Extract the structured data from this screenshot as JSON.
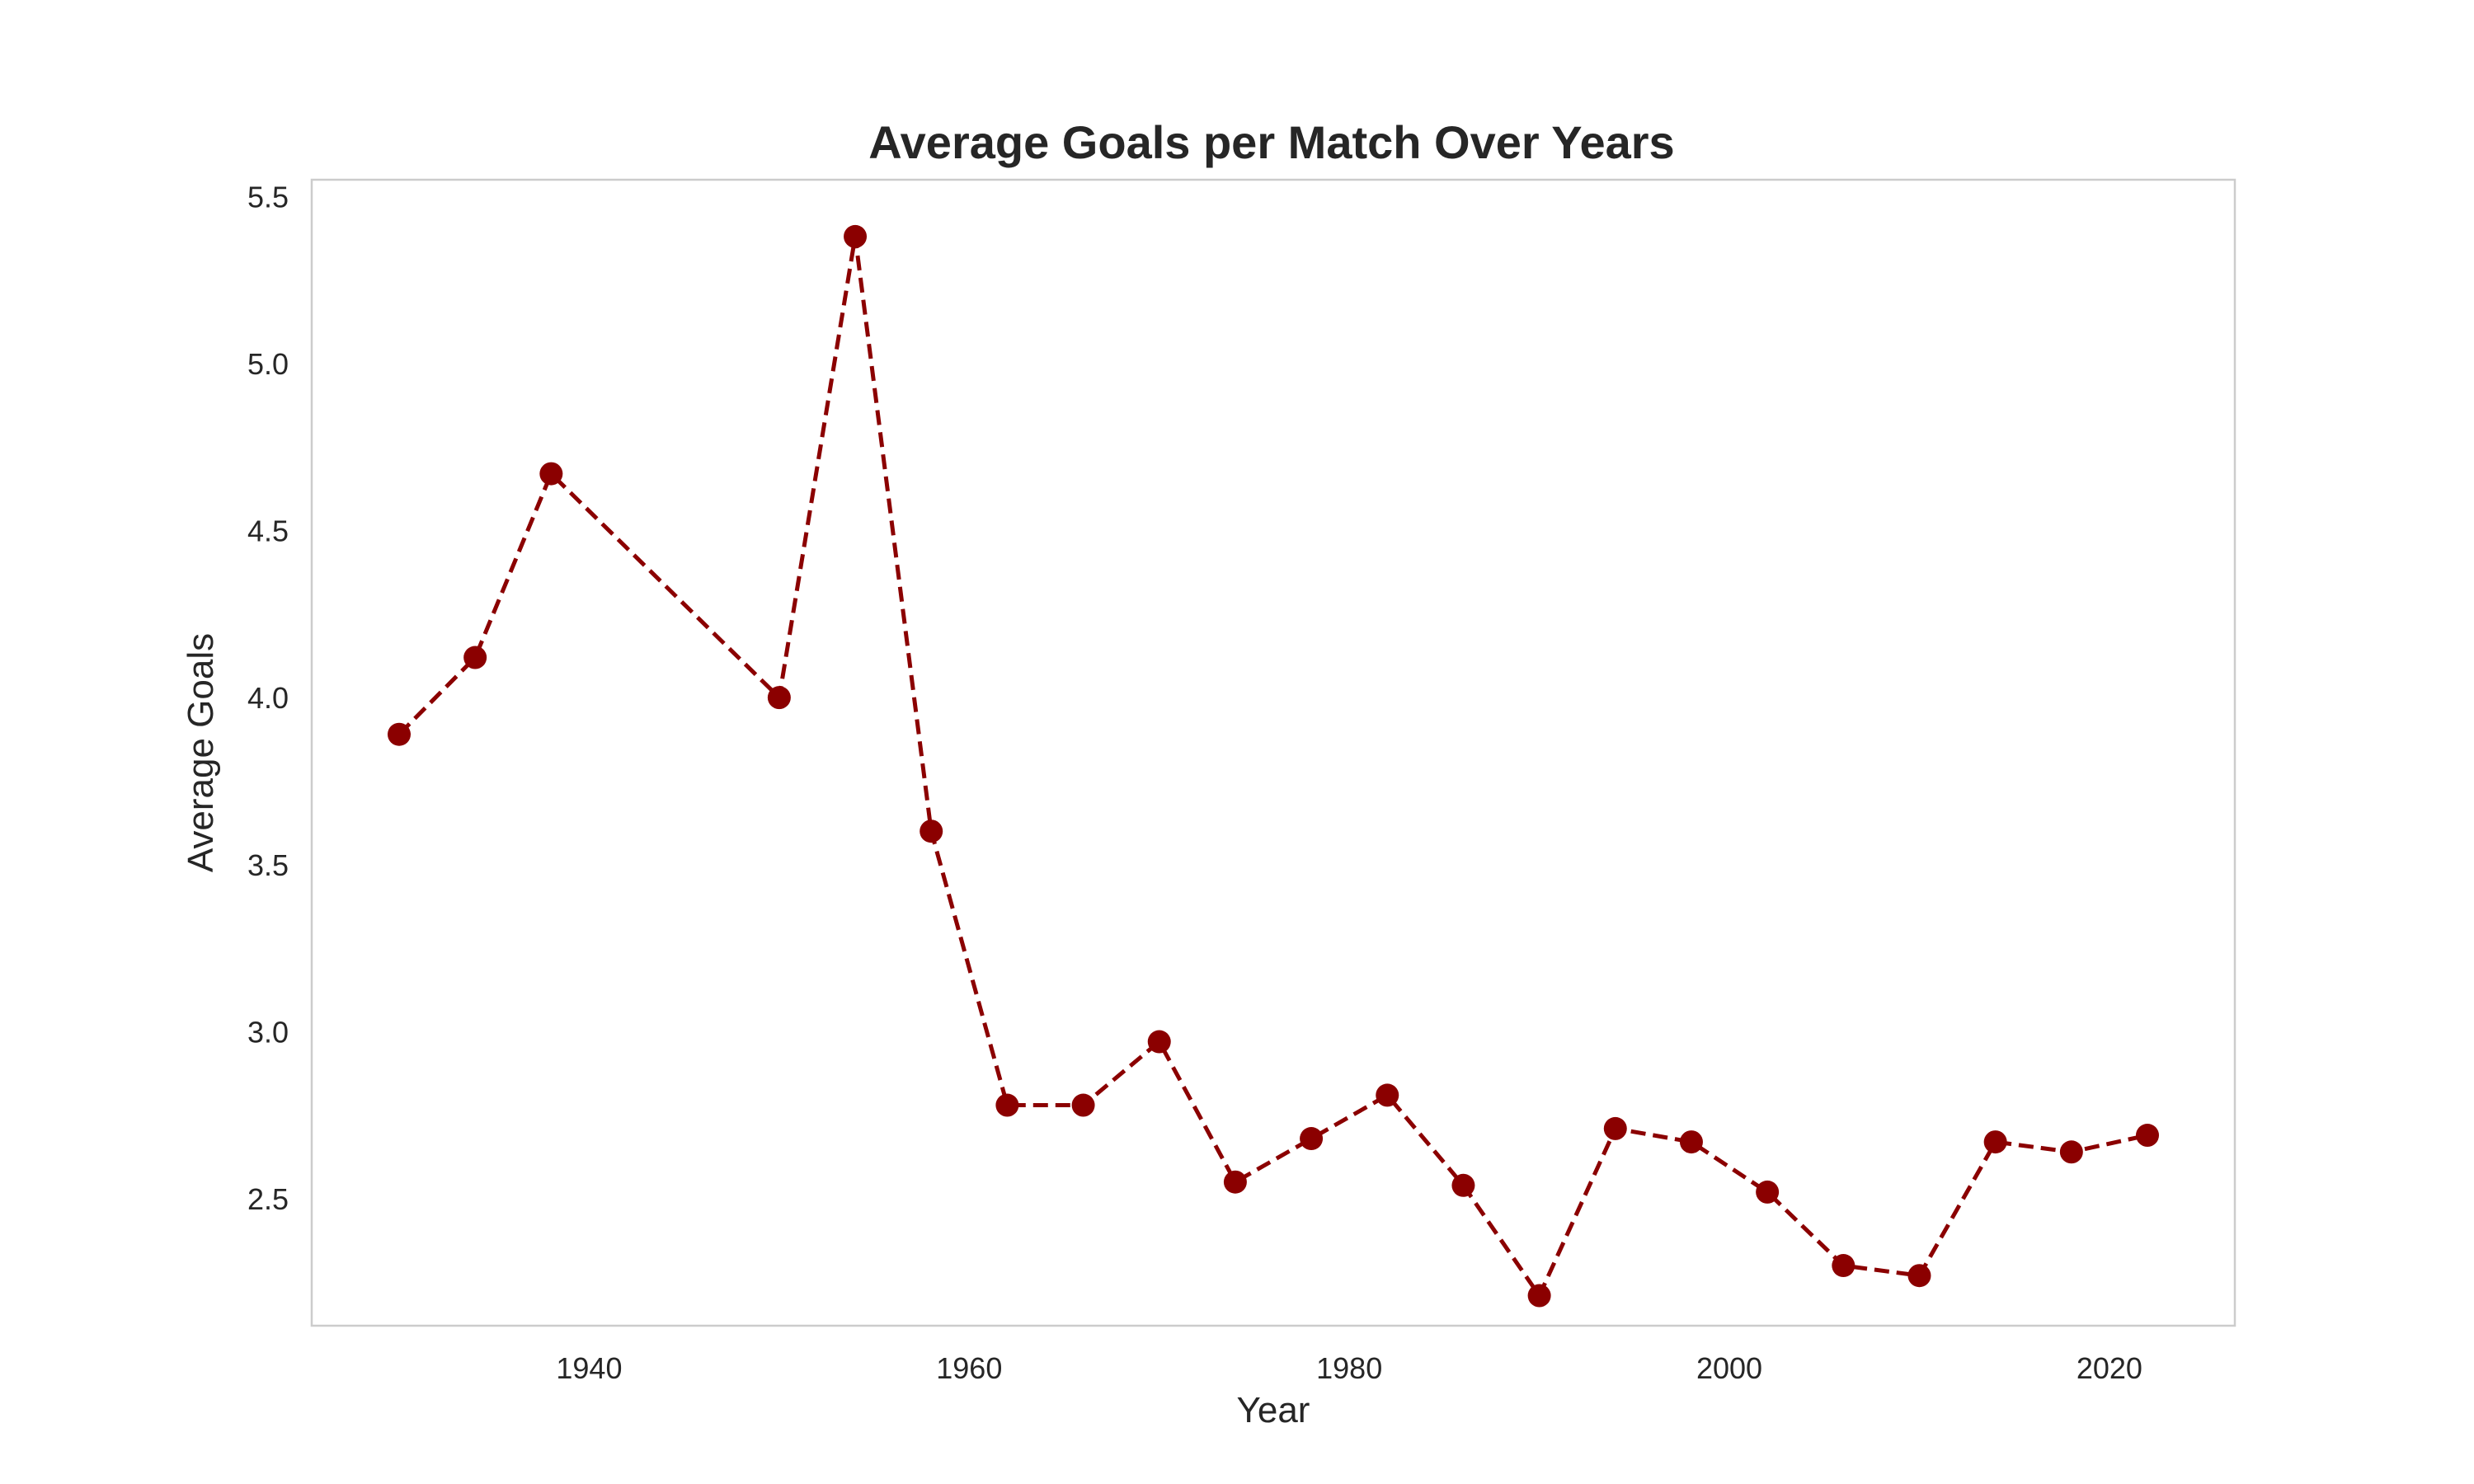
{
  "chart_data": {
    "type": "line",
    "title": "Average Goals per Match Over Years",
    "xlabel": "Year",
    "ylabel": "Average Goals",
    "xlim": [
      1925.4,
      2026.6
    ],
    "ylim": [
      2.12,
      5.55
    ],
    "xticks": [
      1940,
      1960,
      1980,
      2000,
      2020
    ],
    "yticks": [
      2.5,
      3.0,
      3.5,
      4.0,
      4.5,
      5.0,
      5.5
    ],
    "ytick_labels": [
      "2.5",
      "3.0",
      "3.5",
      "4.0",
      "4.5",
      "5.0",
      "5.5"
    ],
    "grid": false,
    "legend": "none",
    "color": "#8b0000",
    "line_style": "dashed",
    "marker": "circle",
    "series": [
      {
        "x": [
          1930,
          1934,
          1938,
          1950,
          1954,
          1958,
          1962,
          1966,
          1970,
          1974,
          1978,
          1982,
          1986,
          1990,
          1994,
          1998,
          2002,
          2006,
          2010,
          2014,
          2018,
          2022
        ],
        "values": [
          3.89,
          4.12,
          4.67,
          4.0,
          5.38,
          3.6,
          2.78,
          2.78,
          2.97,
          2.55,
          2.68,
          2.81,
          2.54,
          2.21,
          2.71,
          2.67,
          2.52,
          2.3,
          2.27,
          2.67,
          2.64,
          2.69
        ]
      }
    ]
  }
}
